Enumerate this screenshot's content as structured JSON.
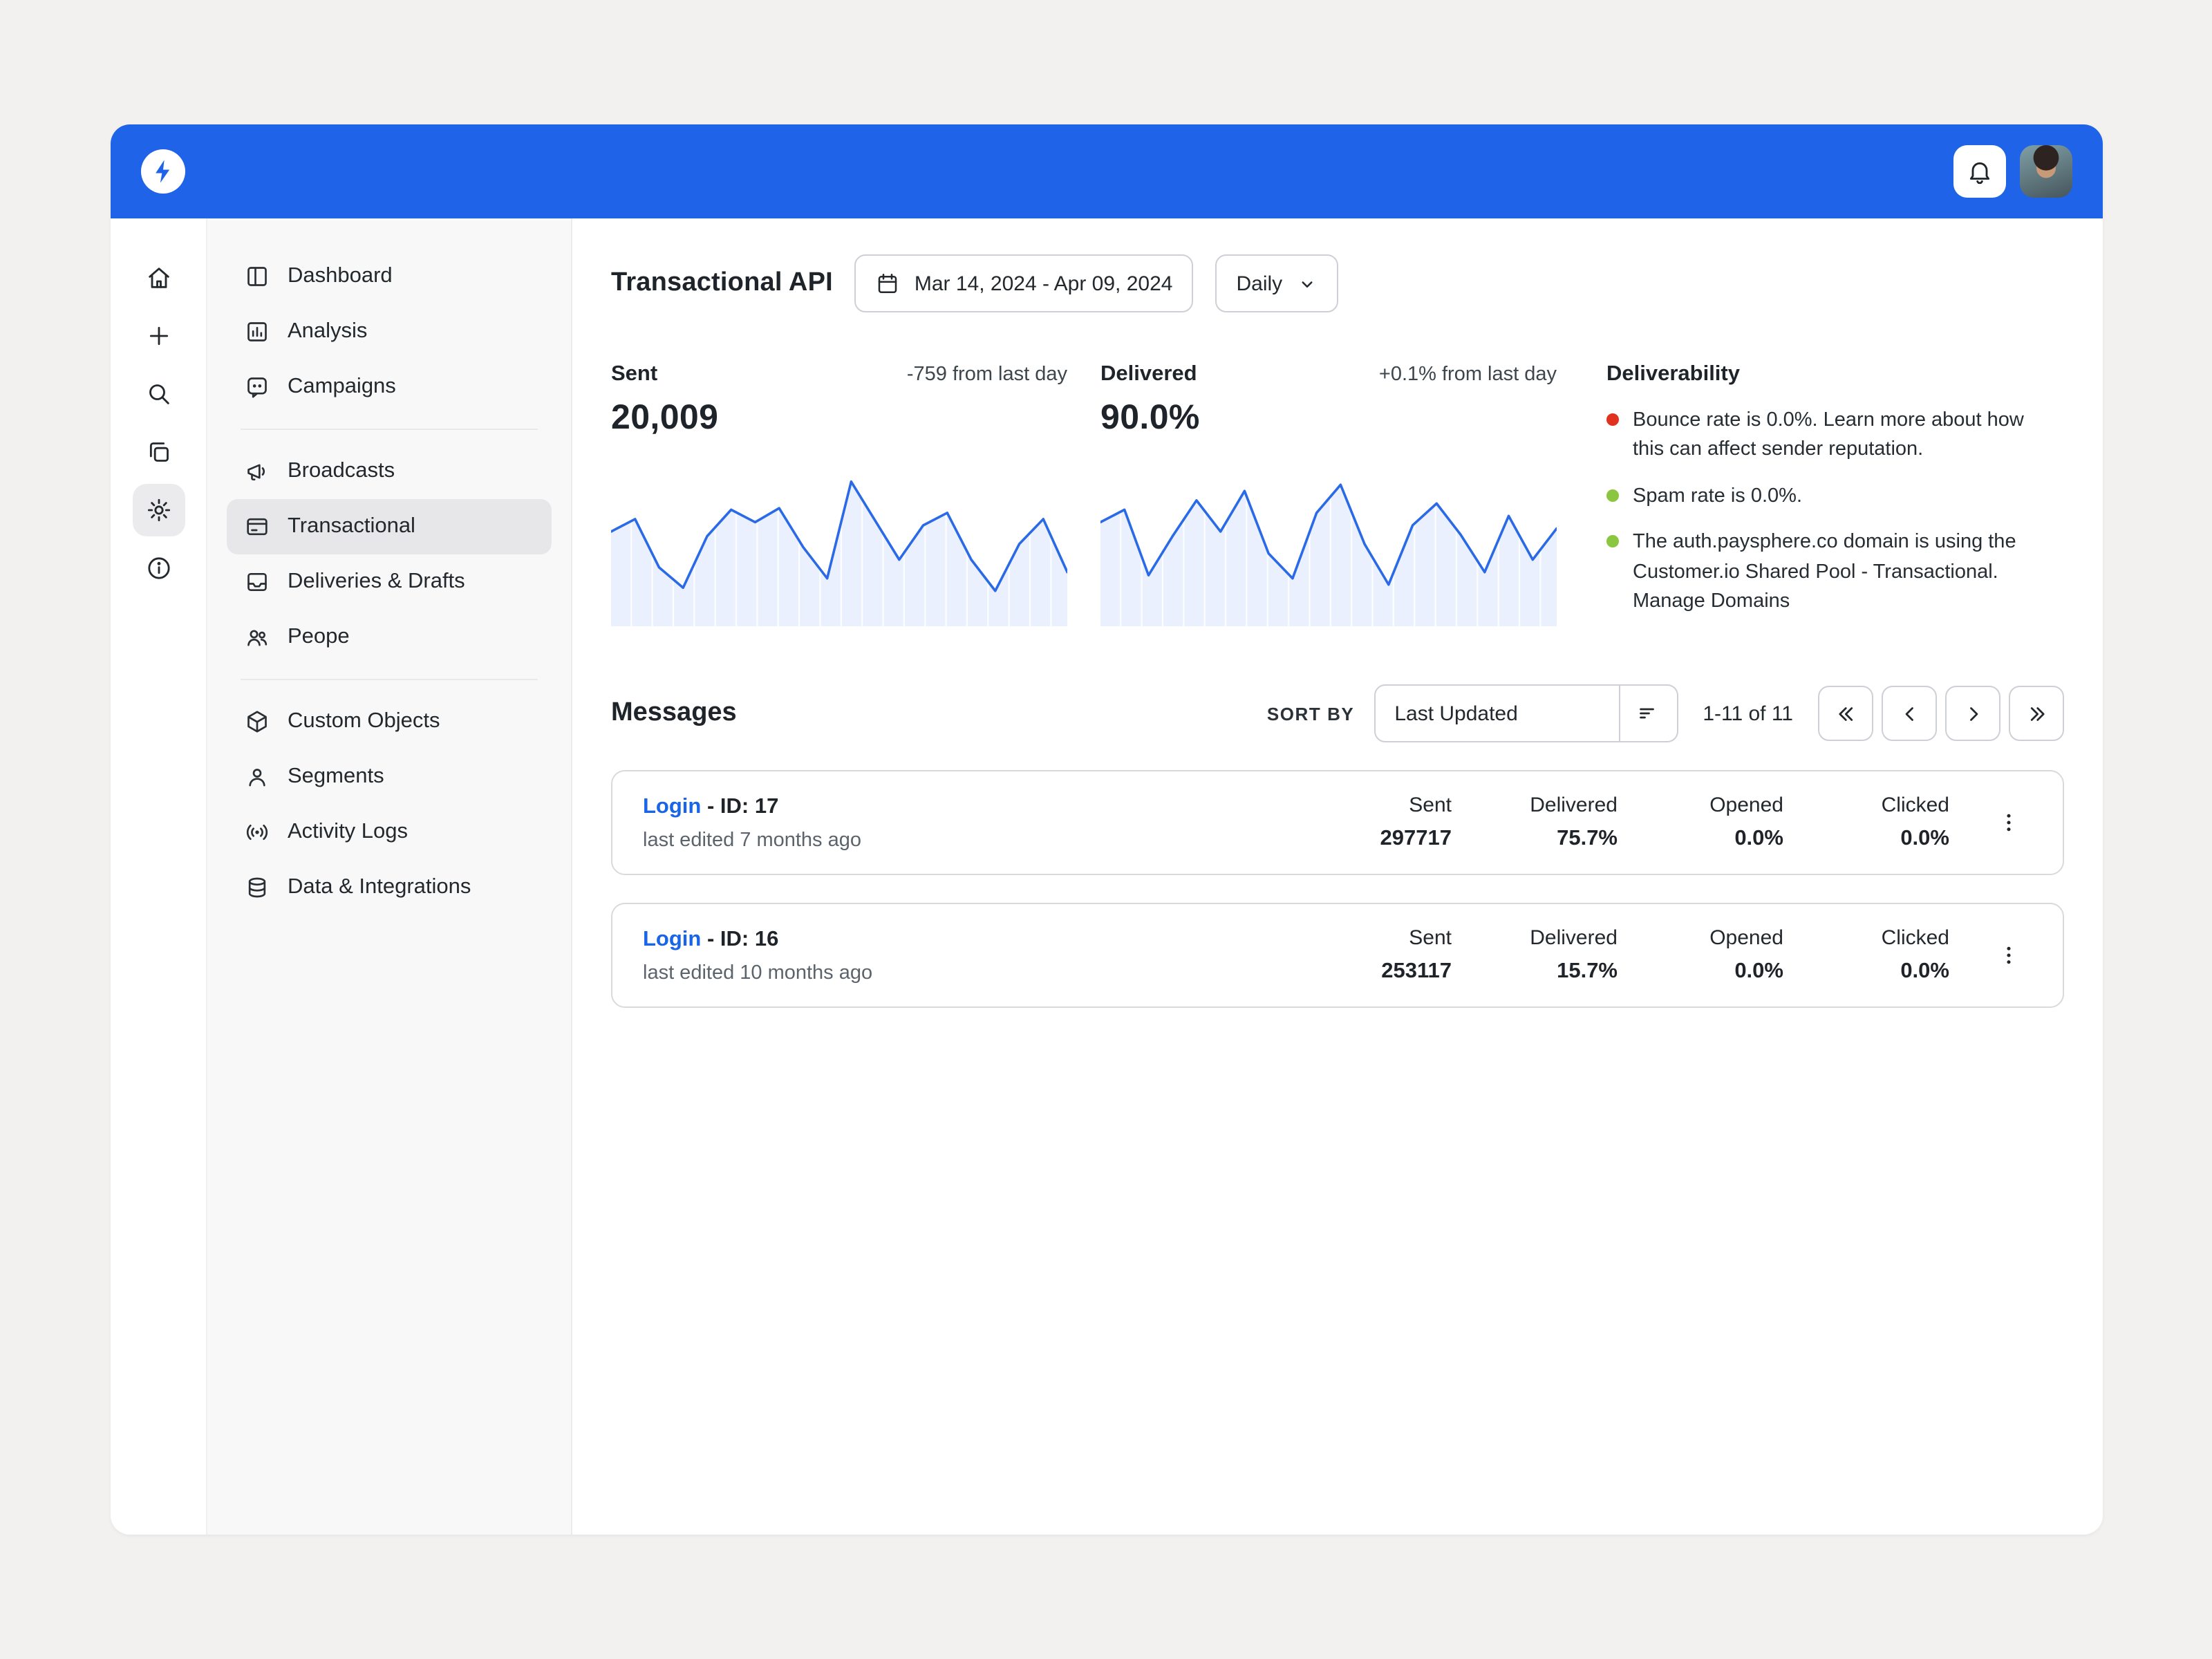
{
  "colors": {
    "topbar": "#1e63e8",
    "link": "#1a64e6",
    "chart_line": "#2b6ae6",
    "bounce_dot": "#e0321f",
    "ok_dot": "#8ac63f"
  },
  "rail": {
    "items": [
      "home",
      "create",
      "search",
      "pages",
      "settings",
      "info"
    ],
    "active": "settings"
  },
  "sidebar": {
    "groups": [
      {
        "items": [
          {
            "label": "Dashboard"
          },
          {
            "label": "Analysis"
          },
          {
            "label": "Campaigns"
          }
        ]
      },
      {
        "items": [
          {
            "label": "Broadcasts"
          },
          {
            "label": "Transactional",
            "active": true
          },
          {
            "label": "Deliveries & Drafts"
          },
          {
            "label": "Peope"
          }
        ]
      },
      {
        "items": [
          {
            "label": "Custom Objects"
          },
          {
            "label": "Segments"
          },
          {
            "label": "Activity Logs"
          },
          {
            "label": "Data & Integrations"
          }
        ]
      }
    ]
  },
  "header": {
    "title": "Transactional API",
    "date_range": "Mar 14, 2024 - Apr 09, 2024",
    "granularity": "Daily"
  },
  "stats": {
    "sent": {
      "label": "Sent",
      "delta": "-759 from last day",
      "value": "20,009"
    },
    "delivered": {
      "label": "Delivered",
      "delta": "+0.1% from last day",
      "value": "90.0%"
    }
  },
  "deliverability": {
    "title": "Deliverability",
    "items": [
      {
        "dot": "#e0321f",
        "text": "Bounce rate is 0.0%. Learn more about how this can affect sender reputation.",
        "action": ""
      },
      {
        "dot": "#8ac63f",
        "text": "Spam rate is 0.0%.",
        "action": ""
      },
      {
        "dot": "#8ac63f",
        "text": "The auth.paysphere.co domain is using the Customer.io Shared Pool - Transactional.",
        "action": "Manage Domains"
      }
    ]
  },
  "messages": {
    "title": "Messages",
    "sort_label": "SORT BY",
    "sort_value": "Last Updated",
    "range": "1-11 of 11",
    "rows": [
      {
        "name": "Login",
        "id_text": "- ID: 17",
        "edited": "last edited 7 months ago",
        "metrics": [
          {
            "label": "Sent",
            "value": "297717"
          },
          {
            "label": "Delivered",
            "value": "75.7%"
          },
          {
            "label": "Opened",
            "value": "0.0%"
          },
          {
            "label": "Clicked",
            "value": "0.0%"
          }
        ]
      },
      {
        "name": "Login",
        "id_text": "- ID: 16",
        "edited": "last edited 10 months ago",
        "metrics": [
          {
            "label": "Sent",
            "value": "253117"
          },
          {
            "label": "Delivered",
            "value": "15.7%"
          },
          {
            "label": "Opened",
            "value": "0.0%"
          },
          {
            "label": "Clicked",
            "value": "0.0%"
          }
        ]
      }
    ]
  },
  "chart_data": [
    {
      "type": "line",
      "name": "Sent daily sparkline",
      "x_range": "Mar 14, 2024 - Apr 09, 2024",
      "values": [
        58,
        66,
        35,
        22,
        55,
        72,
        64,
        73,
        48,
        28,
        90,
        65,
        40,
        62,
        70,
        40,
        20,
        50,
        66,
        32
      ]
    },
    {
      "type": "line",
      "name": "Delivered daily sparkline",
      "x_range": "Mar 14, 2024 - Apr 09, 2024",
      "values": [
        64,
        72,
        30,
        55,
        78,
        58,
        84,
        44,
        28,
        70,
        88,
        50,
        24,
        62,
        76,
        56,
        32,
        68,
        40,
        60
      ]
    }
  ]
}
